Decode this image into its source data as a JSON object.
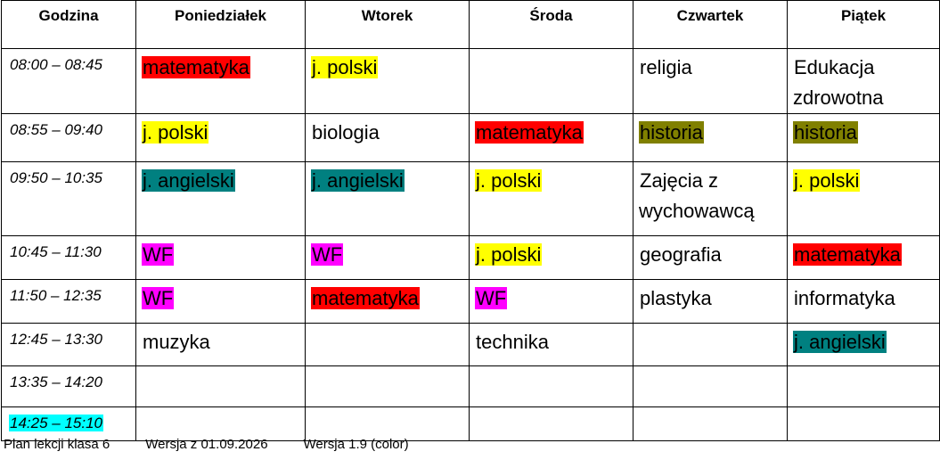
{
  "table": {
    "header": [
      "Godzina",
      "Poniedziałek",
      "Wtorek",
      "Środa",
      "Czwartek",
      "Piątek"
    ],
    "rows": [
      {
        "time": "08:00 – 08:45",
        "cells": [
          {
            "text": "matematyka",
            "color": "#ff0000"
          },
          {
            "text": "j. polski",
            "color": "#ffff00"
          },
          null,
          {
            "text": "religia"
          },
          {
            "text": "Edukacja zdrowotna"
          }
        ]
      },
      {
        "time": "08:55 – 09:40",
        "cells": [
          {
            "text": "j. polski",
            "color": "#ffff00"
          },
          {
            "text": "biologia"
          },
          {
            "text": "matematyka",
            "color": "#ff0000"
          },
          {
            "text": "historia",
            "color": "#808000"
          },
          {
            "text": "historia",
            "color": "#808000"
          }
        ]
      },
      {
        "time": "09:50 – 10:35",
        "cells": [
          {
            "text": "j. angielski",
            "color": "#008080"
          },
          {
            "text": "j. angielski",
            "color": "#008080"
          },
          {
            "text": "j. polski",
            "color": "#ffff00"
          },
          {
            "text": "Zajęcia z wychowawcą"
          },
          {
            "text": "j. polski",
            "color": "#ffff00"
          }
        ]
      },
      {
        "time": "10:45 – 11:30",
        "cells": [
          {
            "text": "WF",
            "color": "#ff00ff"
          },
          {
            "text": "WF",
            "color": "#ff00ff"
          },
          {
            "text": "j. polski",
            "color": "#ffff00"
          },
          {
            "text": "geografia"
          },
          {
            "text": "matematyka",
            "color": "#ff0000"
          }
        ]
      },
      {
        "time": "11:50 – 12:35",
        "cells": [
          {
            "text": "WF",
            "color": "#ff00ff"
          },
          {
            "text": "matematyka",
            "color": "#ff0000"
          },
          {
            "text": "WF",
            "color": "#ff00ff"
          },
          {
            "text": "plastyka"
          },
          {
            "text": "informatyka"
          }
        ]
      },
      {
        "time": "12:45 – 13:30",
        "cells": [
          {
            "text": "muzyka"
          },
          null,
          {
            "text": "technika"
          },
          null,
          {
            "text": "j. angielski",
            "color": "#008080"
          }
        ]
      },
      {
        "time": "13:35 – 14:20",
        "cells": [
          null,
          null,
          null,
          null,
          null
        ]
      },
      {
        "time": "14:25 – 15:10",
        "time_color": "#00ffff",
        "cells": [
          null,
          null,
          null,
          null,
          null
        ]
      }
    ]
  },
  "footer": [
    "Plan lekcji klasa 6",
    "Wersja z 01.09.2026",
    "Wersja 1.9 (color)"
  ]
}
